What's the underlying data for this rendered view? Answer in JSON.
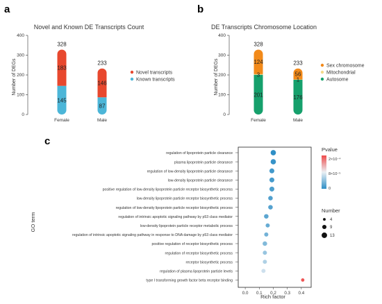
{
  "panel_letters": [
    "a",
    "b",
    "c"
  ],
  "chart_data": [
    {
      "type": "bar",
      "stacked": true,
      "title": "Novel and Known DE Transcripts Count",
      "ylabel": "Number of DEGs",
      "xlabel": "",
      "categories": [
        "Female",
        "Male"
      ],
      "totals": [
        328,
        233
      ],
      "series": [
        {
          "name": "Known transcripts",
          "values": [
            145,
            87
          ],
          "color": "#4cb6d8"
        },
        {
          "name": "Novel transcripts",
          "values": [
            183,
            146
          ],
          "color": "#e8482e"
        }
      ],
      "ylim": [
        0,
        400
      ],
      "yticks": [
        0,
        100,
        200,
        300,
        400
      ],
      "legend": "right"
    },
    {
      "type": "bar",
      "stacked": true,
      "title": "DE Transcripts Chromosome Location",
      "ylabel": "Number of DEGs",
      "xlabel": "",
      "categories": [
        "Female",
        "Male"
      ],
      "totals": [
        328,
        233
      ],
      "series": [
        {
          "name": "Autosome",
          "values": [
            201,
            176
          ],
          "color": "#16a06c"
        },
        {
          "name": "Mitochondrial",
          "values": [
            3,
            1
          ],
          "color": "#f3d98b"
        },
        {
          "name": "Sex chromosome",
          "values": [
            124,
            56
          ],
          "color": "#f28a1a"
        }
      ],
      "ylim": [
        0,
        400
      ],
      "yticks": [
        0,
        100,
        200,
        300,
        400
      ],
      "legend": "right"
    },
    {
      "type": "scatter",
      "xlabel": "Rich factor",
      "ylabel": "GO term",
      "xlim": [
        -0.05,
        0.47
      ],
      "xticks": [
        "0.0",
        "0.1",
        "0.2",
        "0.3",
        "0.4"
      ],
      "terms": [
        "regulation of lipoprotein particle clearance",
        "plasma lipoprotein particle clearance",
        "regulation of low-density lipoprotein particle clearance",
        "low-density lipoprotein particle clearance",
        "positive regulation of low-density lipoprotein particle receptor biosynthetic process",
        "low-density lipoprotein particle receptor biosynthetic process",
        "regulation of low-density lipoprotein particle receptor biosynthetic process",
        "regulation of intrinsic apoptotic signaling pathway by p53 class mediator",
        "low-density lipoprotein particle receptor metabolic process",
        "regulation of intrinsic apoptotic signaling pathway in response to DNA damage by p53 class mediator",
        "positive regulation of receptor biosynthetic process",
        "regulation of receptor biosynthetic process",
        "receptor biosynthetic process",
        "regulation of plasma lipoprotein particle levels",
        "type I transforming growth factor beta receptor binding"
      ],
      "rich_factor": [
        0.2,
        0.2,
        0.19,
        0.19,
        0.19,
        0.18,
        0.18,
        0.15,
        0.16,
        0.15,
        0.14,
        0.14,
        0.14,
        0.13,
        0.41
      ],
      "number": [
        9,
        9,
        8,
        8,
        8,
        7,
        7,
        7,
        6,
        6,
        7,
        6,
        6,
        6,
        4
      ],
      "pvalue_frac": [
        0.0,
        0.02,
        0.05,
        0.06,
        0.08,
        0.09,
        0.1,
        0.12,
        0.15,
        0.18,
        0.22,
        0.28,
        0.34,
        0.42,
        0.97
      ],
      "pvalue_legend": {
        "title": "Pvalue",
        "labels": [
          "2×10⁻⁴",
          "8×10⁻⁵",
          "0"
        ],
        "color_low": "#2f8fc6",
        "color_high": "#ee4b4b"
      },
      "size_legend": {
        "title": "Number",
        "labels": [
          "4",
          "9",
          "13"
        ]
      }
    }
  ]
}
